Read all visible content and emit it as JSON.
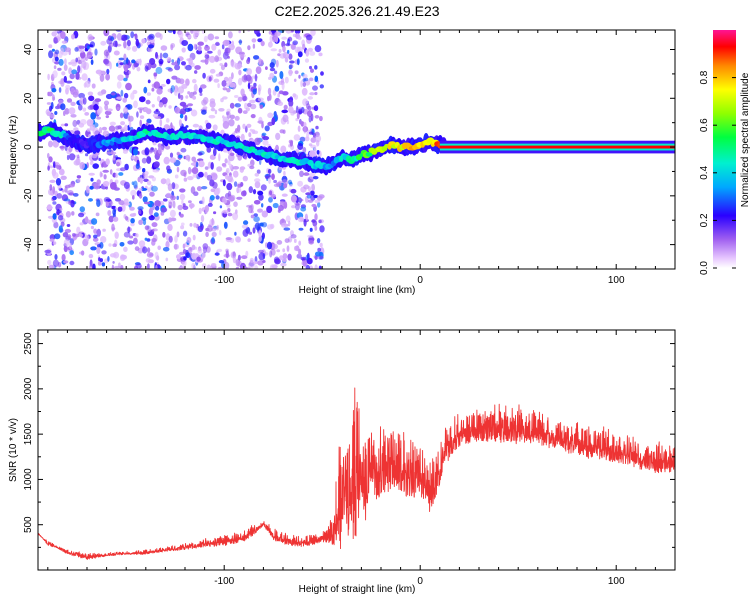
{
  "title": "C2E2.2025.326.21.49.E23",
  "chart_data": [
    {
      "type": "heatmap",
      "title": "C2E2.2025.326.21.49.E23",
      "xlabel": "Height of straight line (km)",
      "ylabel": "Frequency (Hz)",
      "xlim": [
        -195,
        130
      ],
      "ylim": [
        -50,
        48
      ],
      "x_ticks": [
        -100,
        0,
        100
      ],
      "x_tick_labels": [
        "-100",
        "0",
        "100"
      ],
      "y_ticks": [
        -40,
        -20,
        0,
        20,
        40
      ],
      "y_tick_labels": [
        "-40",
        "-20",
        "0",
        "20",
        "40"
      ],
      "grid": false,
      "colorbar": {
        "label": "Normalized spectral amplitude",
        "range": [
          0,
          1
        ],
        "ticks": [
          0.0,
          0.2,
          0.4,
          0.6,
          0.8
        ],
        "tick_labels": [
          "0.0",
          "0.2",
          "0.4",
          "0.6",
          "0.8"
        ]
      },
      "ridge": {
        "name": "dominant frequency",
        "x": [
          -195,
          -190,
          -185,
          -180,
          -175,
          -170,
          -160,
          -150,
          -140,
          -130,
          -120,
          -110,
          -100,
          -90,
          -80,
          -70,
          -60,
          -50,
          -45,
          -40,
          -35,
          -30,
          -25,
          -20,
          -15,
          -10,
          -5,
          0,
          5,
          10,
          20,
          40,
          60,
          80,
          100,
          120,
          130
        ],
        "y": [
          6,
          7,
          6,
          4,
          2,
          1,
          2,
          3,
          6,
          4,
          5,
          4,
          2,
          0,
          -3,
          -5,
          -6,
          -8,
          -7,
          -4,
          -5,
          -3,
          -2,
          -1,
          1,
          0,
          0,
          1,
          2,
          1,
          0,
          0,
          0,
          0,
          0,
          0,
          0
        ],
        "amplitude": [
          0.55,
          0.6,
          0.55,
          0.3,
          0.25,
          0.2,
          0.35,
          0.4,
          0.5,
          0.45,
          0.45,
          0.45,
          0.45,
          0.5,
          0.45,
          0.45,
          0.45,
          0.4,
          0.35,
          0.45,
          0.5,
          0.6,
          0.65,
          0.75,
          0.8,
          0.85,
          0.85,
          0.9,
          0.8,
          0.95,
          0.95,
          0.95,
          0.95,
          0.95,
          0.95,
          0.95,
          0.95
        ]
      },
      "noise_region": {
        "x_range": [
          -190,
          -50
        ],
        "note": "scattered low-amplitude speckle"
      }
    },
    {
      "type": "line",
      "xlabel": "Height of straight line (km)",
      "ylabel": "SNR (10 * v/v)",
      "xlim": [
        -195,
        130
      ],
      "ylim": [
        0,
        2650
      ],
      "x_ticks": [
        -100,
        0,
        100
      ],
      "x_tick_labels": [
        "-100",
        "0",
        "100"
      ],
      "y_ticks": [
        500,
        1000,
        1500,
        2000,
        2500
      ],
      "y_tick_labels": [
        "500",
        "1000",
        "1500",
        "2000",
        "2500"
      ],
      "grid": false,
      "series": [
        {
          "name": "SNR",
          "color": "#ee3333",
          "x": [
            -195,
            -190,
            -185,
            -180,
            -170,
            -160,
            -150,
            -140,
            -130,
            -120,
            -110,
            -100,
            -90,
            -85,
            -80,
            -75,
            -70,
            -65,
            -60,
            -55,
            -50,
            -45,
            -42,
            -40,
            -38,
            -35,
            -33,
            -30,
            -28,
            -25,
            -22,
            -20,
            -15,
            -10,
            -5,
            0,
            5,
            10,
            15,
            20,
            30,
            40,
            50,
            60,
            70,
            80,
            90,
            100,
            110,
            120,
            130
          ],
          "y": [
            400,
            300,
            250,
            200,
            150,
            170,
            190,
            200,
            230,
            260,
            300,
            330,
            380,
            450,
            520,
            400,
            350,
            330,
            320,
            330,
            380,
            420,
            800,
            1300,
            900,
            1100,
            1400,
            1200,
            1000,
            1300,
            1100,
            1200,
            1250,
            1200,
            1150,
            1100,
            950,
            1200,
            1450,
            1550,
            1600,
            1620,
            1620,
            1580,
            1500,
            1450,
            1400,
            1360,
            1300,
            1250,
            1230
          ],
          "envelope": [
            380,
            330,
            260,
            230,
            190,
            190,
            210,
            230,
            260,
            300,
            350,
            400,
            450,
            520,
            550,
            480,
            420,
            400,
            390,
            400,
            450,
            600,
            1500,
            2450,
            1300,
            2100,
            2600,
            1700,
            1500,
            1700,
            1500,
            1600,
            1650,
            1600,
            1550,
            1400,
            1300,
            1500,
            1700,
            1750,
            1800,
            1850,
            1850,
            1800,
            1700,
            1650,
            1600,
            1550,
            1500,
            1450,
            1400
          ]
        }
      ]
    }
  ]
}
